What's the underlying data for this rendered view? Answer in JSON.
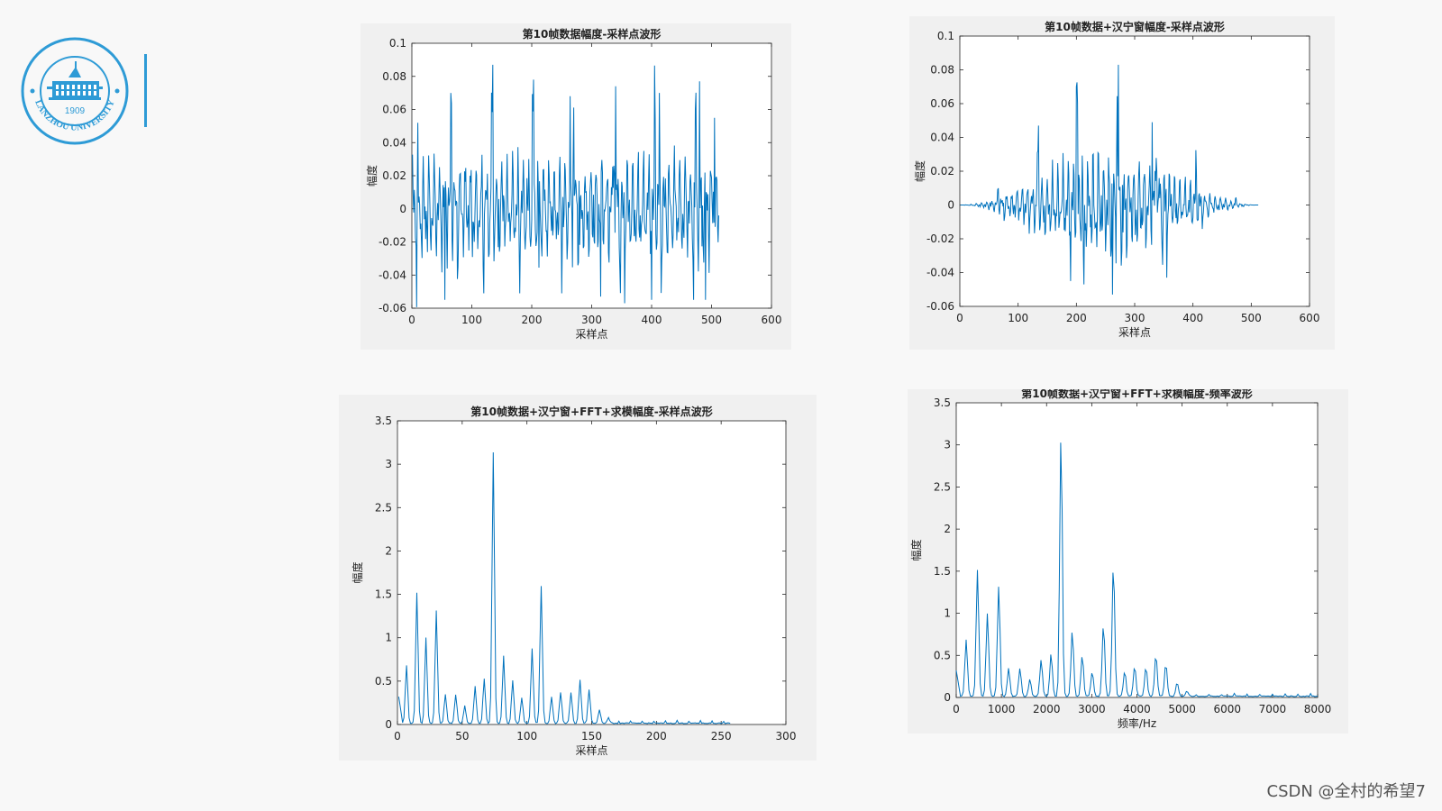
{
  "logo": {
    "year": "1909",
    "ring_text": "LANZHOU UNIVERSITY",
    "color": "#2e9bd6"
  },
  "watermark": "CSDN @全村的希望7",
  "line_color": "#0072bd",
  "chart_data": [
    {
      "type": "line",
      "title": "第10帧数据幅度-采样点波形",
      "xlabel": "采样点",
      "ylabel": "幅度",
      "xlim": [
        0,
        600
      ],
      "ylim": [
        -0.06,
        0.1
      ],
      "xticks": [
        "0",
        "100",
        "200",
        "300",
        "400",
        "500",
        "600"
      ],
      "yticks": [
        "-0.06",
        "-0.04",
        "-0.02",
        "0",
        "0.02",
        "0.04",
        "0.06",
        "0.08",
        "0.1"
      ],
      "x_range": [
        1,
        512
      ],
      "peaks": [
        {
          "x": 10,
          "y": 0.052
        },
        {
          "x": 55,
          "y": -0.055
        },
        {
          "x": 65,
          "y": 0.07
        },
        {
          "x": 120,
          "y": -0.051
        },
        {
          "x": 135,
          "y": 0.087
        },
        {
          "x": 180,
          "y": -0.051
        },
        {
          "x": 203,
          "y": 0.078
        },
        {
          "x": 250,
          "y": -0.051
        },
        {
          "x": 264,
          "y": 0.068
        },
        {
          "x": 315,
          "y": -0.053
        },
        {
          "x": 340,
          "y": 0.074
        },
        {
          "x": 355,
          "y": -0.057
        },
        {
          "x": 400,
          "y": -0.055
        },
        {
          "x": 413,
          "y": 0.07
        },
        {
          "x": 470,
          "y": -0.055
        },
        {
          "x": 480,
          "y": 0.077
        },
        {
          "x": 490,
          "y": -0.055
        },
        {
          "x": 505,
          "y": 0.055
        }
      ]
    },
    {
      "type": "line",
      "title": "第10帧数据+汉宁窗幅度-采样点波形",
      "xlabel": "采样点",
      "ylabel": "幅度",
      "xlim": [
        0,
        600
      ],
      "ylim": [
        -0.06,
        0.1
      ],
      "xticks": [
        "0",
        "100",
        "200",
        "300",
        "400",
        "500",
        "600"
      ],
      "yticks": [
        "-0.06",
        "-0.04",
        "-0.02",
        "0",
        "0.02",
        "0.04",
        "0.06",
        "0.08",
        "0.1"
      ],
      "x_range": [
        1,
        512
      ],
      "peaks": [
        {
          "x": 135,
          "y": 0.047
        },
        {
          "x": 200,
          "y": 0.07
        },
        {
          "x": 190,
          "y": -0.045
        },
        {
          "x": 213,
          "y": -0.047
        },
        {
          "x": 262,
          "y": 0.068
        },
        {
          "x": 272,
          "y": 0.083
        },
        {
          "x": 262,
          "y": -0.053
        },
        {
          "x": 330,
          "y": 0.049
        },
        {
          "x": 355,
          "y": -0.043
        }
      ]
    },
    {
      "type": "line",
      "title": "第10帧数据+汉宁窗+FFT+求模幅度-采样点波形",
      "xlabel": "采样点",
      "ylabel": "幅度",
      "xlim": [
        0,
        300
      ],
      "ylim": [
        0,
        3.5
      ],
      "xticks": [
        "0",
        "50",
        "100",
        "150",
        "200",
        "250",
        "300"
      ],
      "yticks": [
        "0",
        "0.5",
        "1",
        "1.5",
        "2",
        "2.5",
        "3",
        "3.5"
      ],
      "x_range": [
        1,
        257
      ],
      "peaks": [
        {
          "x": 7,
          "y": 0.67
        },
        {
          "x": 15,
          "y": 1.5
        },
        {
          "x": 22,
          "y": 0.99
        },
        {
          "x": 30,
          "y": 1.3
        },
        {
          "x": 37,
          "y": 0.33
        },
        {
          "x": 45,
          "y": 0.33
        },
        {
          "x": 52,
          "y": 0.2
        },
        {
          "x": 60,
          "y": 0.43
        },
        {
          "x": 67,
          "y": 0.51
        },
        {
          "x": 74,
          "y": 3.12
        },
        {
          "x": 82,
          "y": 0.78
        },
        {
          "x": 89,
          "y": 0.49
        },
        {
          "x": 96,
          "y": 0.29
        },
        {
          "x": 104,
          "y": 0.86
        },
        {
          "x": 111,
          "y": 1.58
        },
        {
          "x": 119,
          "y": 0.3
        },
        {
          "x": 126,
          "y": 0.36
        },
        {
          "x": 134,
          "y": 0.35
        },
        {
          "x": 141,
          "y": 0.5
        },
        {
          "x": 148,
          "y": 0.39
        },
        {
          "x": 156,
          "y": 0.16
        },
        {
          "x": 163,
          "y": 0.06
        }
      ]
    },
    {
      "type": "line",
      "title": "第10帧数据+汉宁窗+FFT+求模幅度-频率波形",
      "xlabel": "频率/Hz",
      "ylabel": "幅度",
      "xlim": [
        0,
        8000
      ],
      "ylim": [
        0,
        3.5
      ],
      "xticks": [
        "0",
        "1000",
        "2000",
        "3000",
        "4000",
        "5000",
        "6000",
        "7000",
        "8000"
      ],
      "yticks": [
        "0",
        "0.5",
        "1",
        "1.5",
        "2",
        "2.5",
        "3",
        "3.5"
      ],
      "x_range": [
        0,
        8000
      ],
      "peaks": [
        {
          "x": 220,
          "y": 0.67
        },
        {
          "x": 470,
          "y": 1.5
        },
        {
          "x": 690,
          "y": 0.99
        },
        {
          "x": 940,
          "y": 1.3
        },
        {
          "x": 1160,
          "y": 0.33
        },
        {
          "x": 1410,
          "y": 0.33
        },
        {
          "x": 1630,
          "y": 0.2
        },
        {
          "x": 1880,
          "y": 0.43
        },
        {
          "x": 2100,
          "y": 0.51
        },
        {
          "x": 2320,
          "y": 3.12
        },
        {
          "x": 2570,
          "y": 0.78
        },
        {
          "x": 2790,
          "y": 0.49
        },
        {
          "x": 3010,
          "y": 0.29
        },
        {
          "x": 3260,
          "y": 0.86
        },
        {
          "x": 3480,
          "y": 1.58
        },
        {
          "x": 3730,
          "y": 0.3
        },
        {
          "x": 3950,
          "y": 0.36
        },
        {
          "x": 4200,
          "y": 0.35
        },
        {
          "x": 4420,
          "y": 0.5
        },
        {
          "x": 4640,
          "y": 0.39
        },
        {
          "x": 4890,
          "y": 0.16
        },
        {
          "x": 5110,
          "y": 0.06
        }
      ]
    }
  ]
}
